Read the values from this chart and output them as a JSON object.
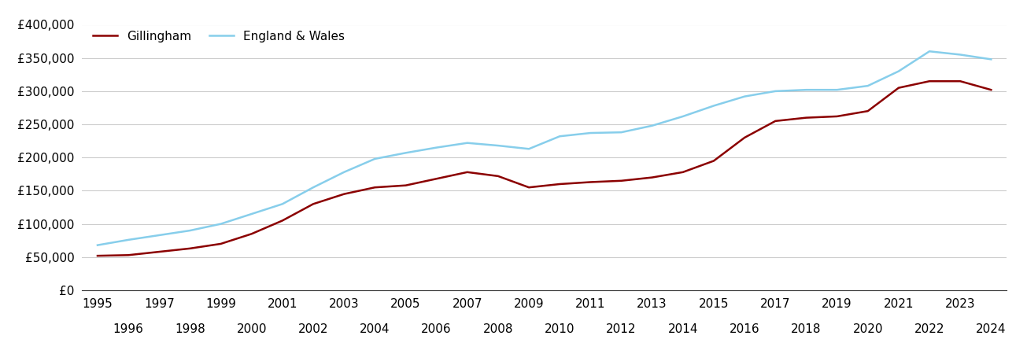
{
  "gillingham_color": "#8B0000",
  "england_wales_color": "#87CEEB",
  "background_color": "#ffffff",
  "grid_color": "#cccccc",
  "years": [
    1995,
    1996,
    1997,
    1998,
    1999,
    2000,
    2001,
    2002,
    2003,
    2004,
    2005,
    2006,
    2007,
    2008,
    2009,
    2010,
    2011,
    2012,
    2013,
    2014,
    2015,
    2016,
    2017,
    2018,
    2019,
    2020,
    2021,
    2022,
    2023,
    2024
  ],
  "gillingham": [
    52000,
    53000,
    58000,
    63000,
    70000,
    85000,
    105000,
    130000,
    145000,
    155000,
    158000,
    168000,
    178000,
    172000,
    155000,
    160000,
    163000,
    165000,
    170000,
    178000,
    195000,
    230000,
    255000,
    260000,
    262000,
    270000,
    305000,
    315000,
    315000,
    302000
  ],
  "england_wales": [
    68000,
    76000,
    83000,
    90000,
    100000,
    115000,
    130000,
    155000,
    178000,
    198000,
    207000,
    215000,
    222000,
    218000,
    213000,
    232000,
    237000,
    238000,
    248000,
    262000,
    278000,
    292000,
    300000,
    302000,
    302000,
    308000,
    330000,
    360000,
    355000,
    348000
  ],
  "ylim": [
    0,
    400000
  ],
  "yticks": [
    0,
    50000,
    100000,
    150000,
    200000,
    250000,
    300000,
    350000,
    400000
  ],
  "tick_fontsize": 11,
  "legend_fontsize": 11,
  "line_width": 1.8,
  "xlim_left": 1994.5,
  "xlim_right": 2024.5
}
